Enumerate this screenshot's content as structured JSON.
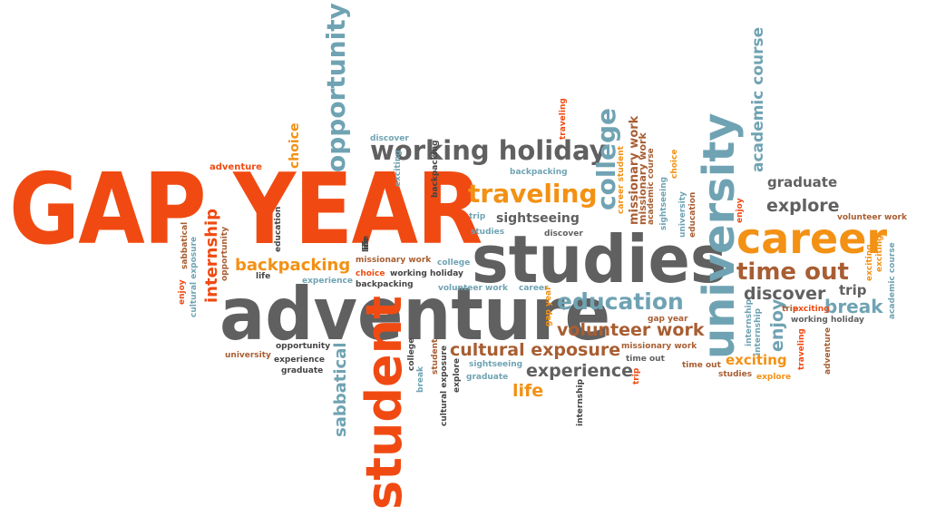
{
  "colors": {
    "orange_red": "#f04a12",
    "orange": "#f39114",
    "gray": "#606060",
    "teal": "#6fa3b3",
    "brown": "#a85e32",
    "dark": "#444444"
  },
  "words": [
    {
      "id": "gap-year",
      "text": "GAP YEAR"
    },
    {
      "id": "adventure",
      "text": "adventure"
    },
    {
      "id": "studies",
      "text": "studies"
    },
    {
      "id": "student",
      "text": "student"
    },
    {
      "id": "university",
      "text": "university"
    },
    {
      "id": "career",
      "text": "career"
    },
    {
      "id": "opportunity",
      "text": "opportunity"
    },
    {
      "id": "working-holiday",
      "text": "working holiday"
    },
    {
      "id": "traveling",
      "text": "traveling"
    },
    {
      "id": "college",
      "text": "college"
    },
    {
      "id": "education",
      "text": "education"
    },
    {
      "id": "time-out",
      "text": "time out"
    },
    {
      "id": "academic-course",
      "text": "academic course"
    },
    {
      "id": "cultural-exposure",
      "text": "cultural exposure"
    },
    {
      "id": "volunteer-work",
      "text": "volunteer work"
    },
    {
      "id": "experience",
      "text": "experience"
    },
    {
      "id": "backpacking",
      "text": "backpacking"
    },
    {
      "id": "internship",
      "text": "internship"
    },
    {
      "id": "sabbatical",
      "text": "sabbatical"
    },
    {
      "id": "explore",
      "text": "explore"
    },
    {
      "id": "discover",
      "text": "discover"
    },
    {
      "id": "break",
      "text": "break"
    },
    {
      "id": "enjoy",
      "text": "enjoy"
    },
    {
      "id": "life",
      "text": "life"
    },
    {
      "id": "exciting",
      "text": "exciting"
    },
    {
      "id": "trip",
      "text": "trip"
    },
    {
      "id": "graduate",
      "text": "graduate"
    },
    {
      "id": "sightseeing",
      "text": "sightseeing"
    },
    {
      "id": "missionary-work",
      "text": "missionary work"
    },
    {
      "id": "choice",
      "text": "choice"
    },
    {
      "id": "adventure-small",
      "text": "adventure"
    },
    {
      "id": "discover-small",
      "text": "discover"
    },
    {
      "id": "backpacking-small",
      "text": "backpacking"
    },
    {
      "id": "trip-small",
      "text": "trip"
    },
    {
      "id": "studies-small",
      "text": "studies"
    },
    {
      "id": "discover-small-2",
      "text": "discover"
    },
    {
      "id": "volunteer-work-right",
      "text": "volunteer work"
    },
    {
      "id": "working-holiday-small",
      "text": "working holiday"
    },
    {
      "id": "gap-year-small",
      "text": "gap year"
    },
    {
      "id": "missionary-work-small",
      "text": "missionary work"
    },
    {
      "id": "time-out-small",
      "text": "time out"
    },
    {
      "id": "trip-tiny",
      "text": "trip"
    },
    {
      "id": "exciting-small",
      "text": "exciting"
    },
    {
      "id": "time-out-tiny",
      "text": "time out"
    },
    {
      "id": "studies-tiny",
      "text": "studies"
    },
    {
      "id": "explore-small",
      "text": "explore"
    },
    {
      "id": "missionary-work-mid",
      "text": "missionary work"
    },
    {
      "id": "college-small",
      "text": "college"
    },
    {
      "id": "choice-small",
      "text": "choice"
    },
    {
      "id": "working-holiday-tiny",
      "text": "working holiday"
    },
    {
      "id": "experience-small",
      "text": "experience"
    },
    {
      "id": "backpacking-tiny",
      "text": "backpacking"
    },
    {
      "id": "volunteer-work-small",
      "text": "volunteer work"
    },
    {
      "id": "career-small",
      "text": "career"
    },
    {
      "id": "opportunity-small",
      "text": "opportunity"
    },
    {
      "id": "experience-tiny",
      "text": "experience"
    },
    {
      "id": "graduate-small",
      "text": "graduate"
    },
    {
      "id": "university-small",
      "text": "university"
    },
    {
      "id": "sightseeing-small",
      "text": "sightseeing"
    },
    {
      "id": "graduate-tiny",
      "text": "graduate"
    },
    {
      "id": "life-small",
      "text": "life"
    },
    {
      "id": "education-small",
      "text": "education"
    },
    {
      "id": "life-tiny",
      "text": "life"
    },
    {
      "id": "exciting-tiny",
      "text": "exciting"
    },
    {
      "id": "backpacking-mini",
      "text": "backpacking"
    },
    {
      "id": "traveling-small",
      "text": "traveling"
    },
    {
      "id": "missionary-work-vert",
      "text": "missionary work"
    },
    {
      "id": "academic-course-vert",
      "text": "academic course"
    },
    {
      "id": "career-student-vert",
      "text": "career student"
    },
    {
      "id": "sightseeing-vert",
      "text": "sightseeing"
    },
    {
      "id": "choice-vert",
      "text": "choice"
    },
    {
      "id": "university-vert-small",
      "text": "university"
    },
    {
      "id": "education-vert",
      "text": "education"
    },
    {
      "id": "enjoy-vert",
      "text": "enjoy"
    },
    {
      "id": "internship-vert-small",
      "text": "internship"
    },
    {
      "id": "traveling-vert",
      "text": "traveling"
    },
    {
      "id": "adventure-vert",
      "text": "adventure"
    },
    {
      "id": "academic-course-small",
      "text": "academic course"
    },
    {
      "id": "exciting-vert",
      "text": "exciting"
    },
    {
      "id": "enjoy-vert-small",
      "text": "enjoy"
    },
    {
      "id": "sabbatical-vert-small",
      "text": "sabbatical"
    },
    {
      "id": "cultural-exposure-vert",
      "text": "cultural exposure"
    },
    {
      "id": "opportunity-vert-small",
      "text": "opportunity"
    },
    {
      "id": "life-vert",
      "text": "life"
    },
    {
      "id": "break-vert",
      "text": "break"
    },
    {
      "id": "student-vert-small",
      "text": "student"
    },
    {
      "id": "college-vert",
      "text": "college"
    },
    {
      "id": "cultural-exposure-vert-2",
      "text": "cultural exposure"
    },
    {
      "id": "explore-vert",
      "text": "explore"
    },
    {
      "id": "internship-vert-tiny",
      "text": "internship"
    },
    {
      "id": "trip-vert",
      "text": "trip"
    },
    {
      "id": "gap-year-vert",
      "text": "gap year"
    },
    {
      "id": "internship-vert-2",
      "text": "internship"
    },
    {
      "id": "exciting-vert-2",
      "text": "exciting"
    }
  ]
}
